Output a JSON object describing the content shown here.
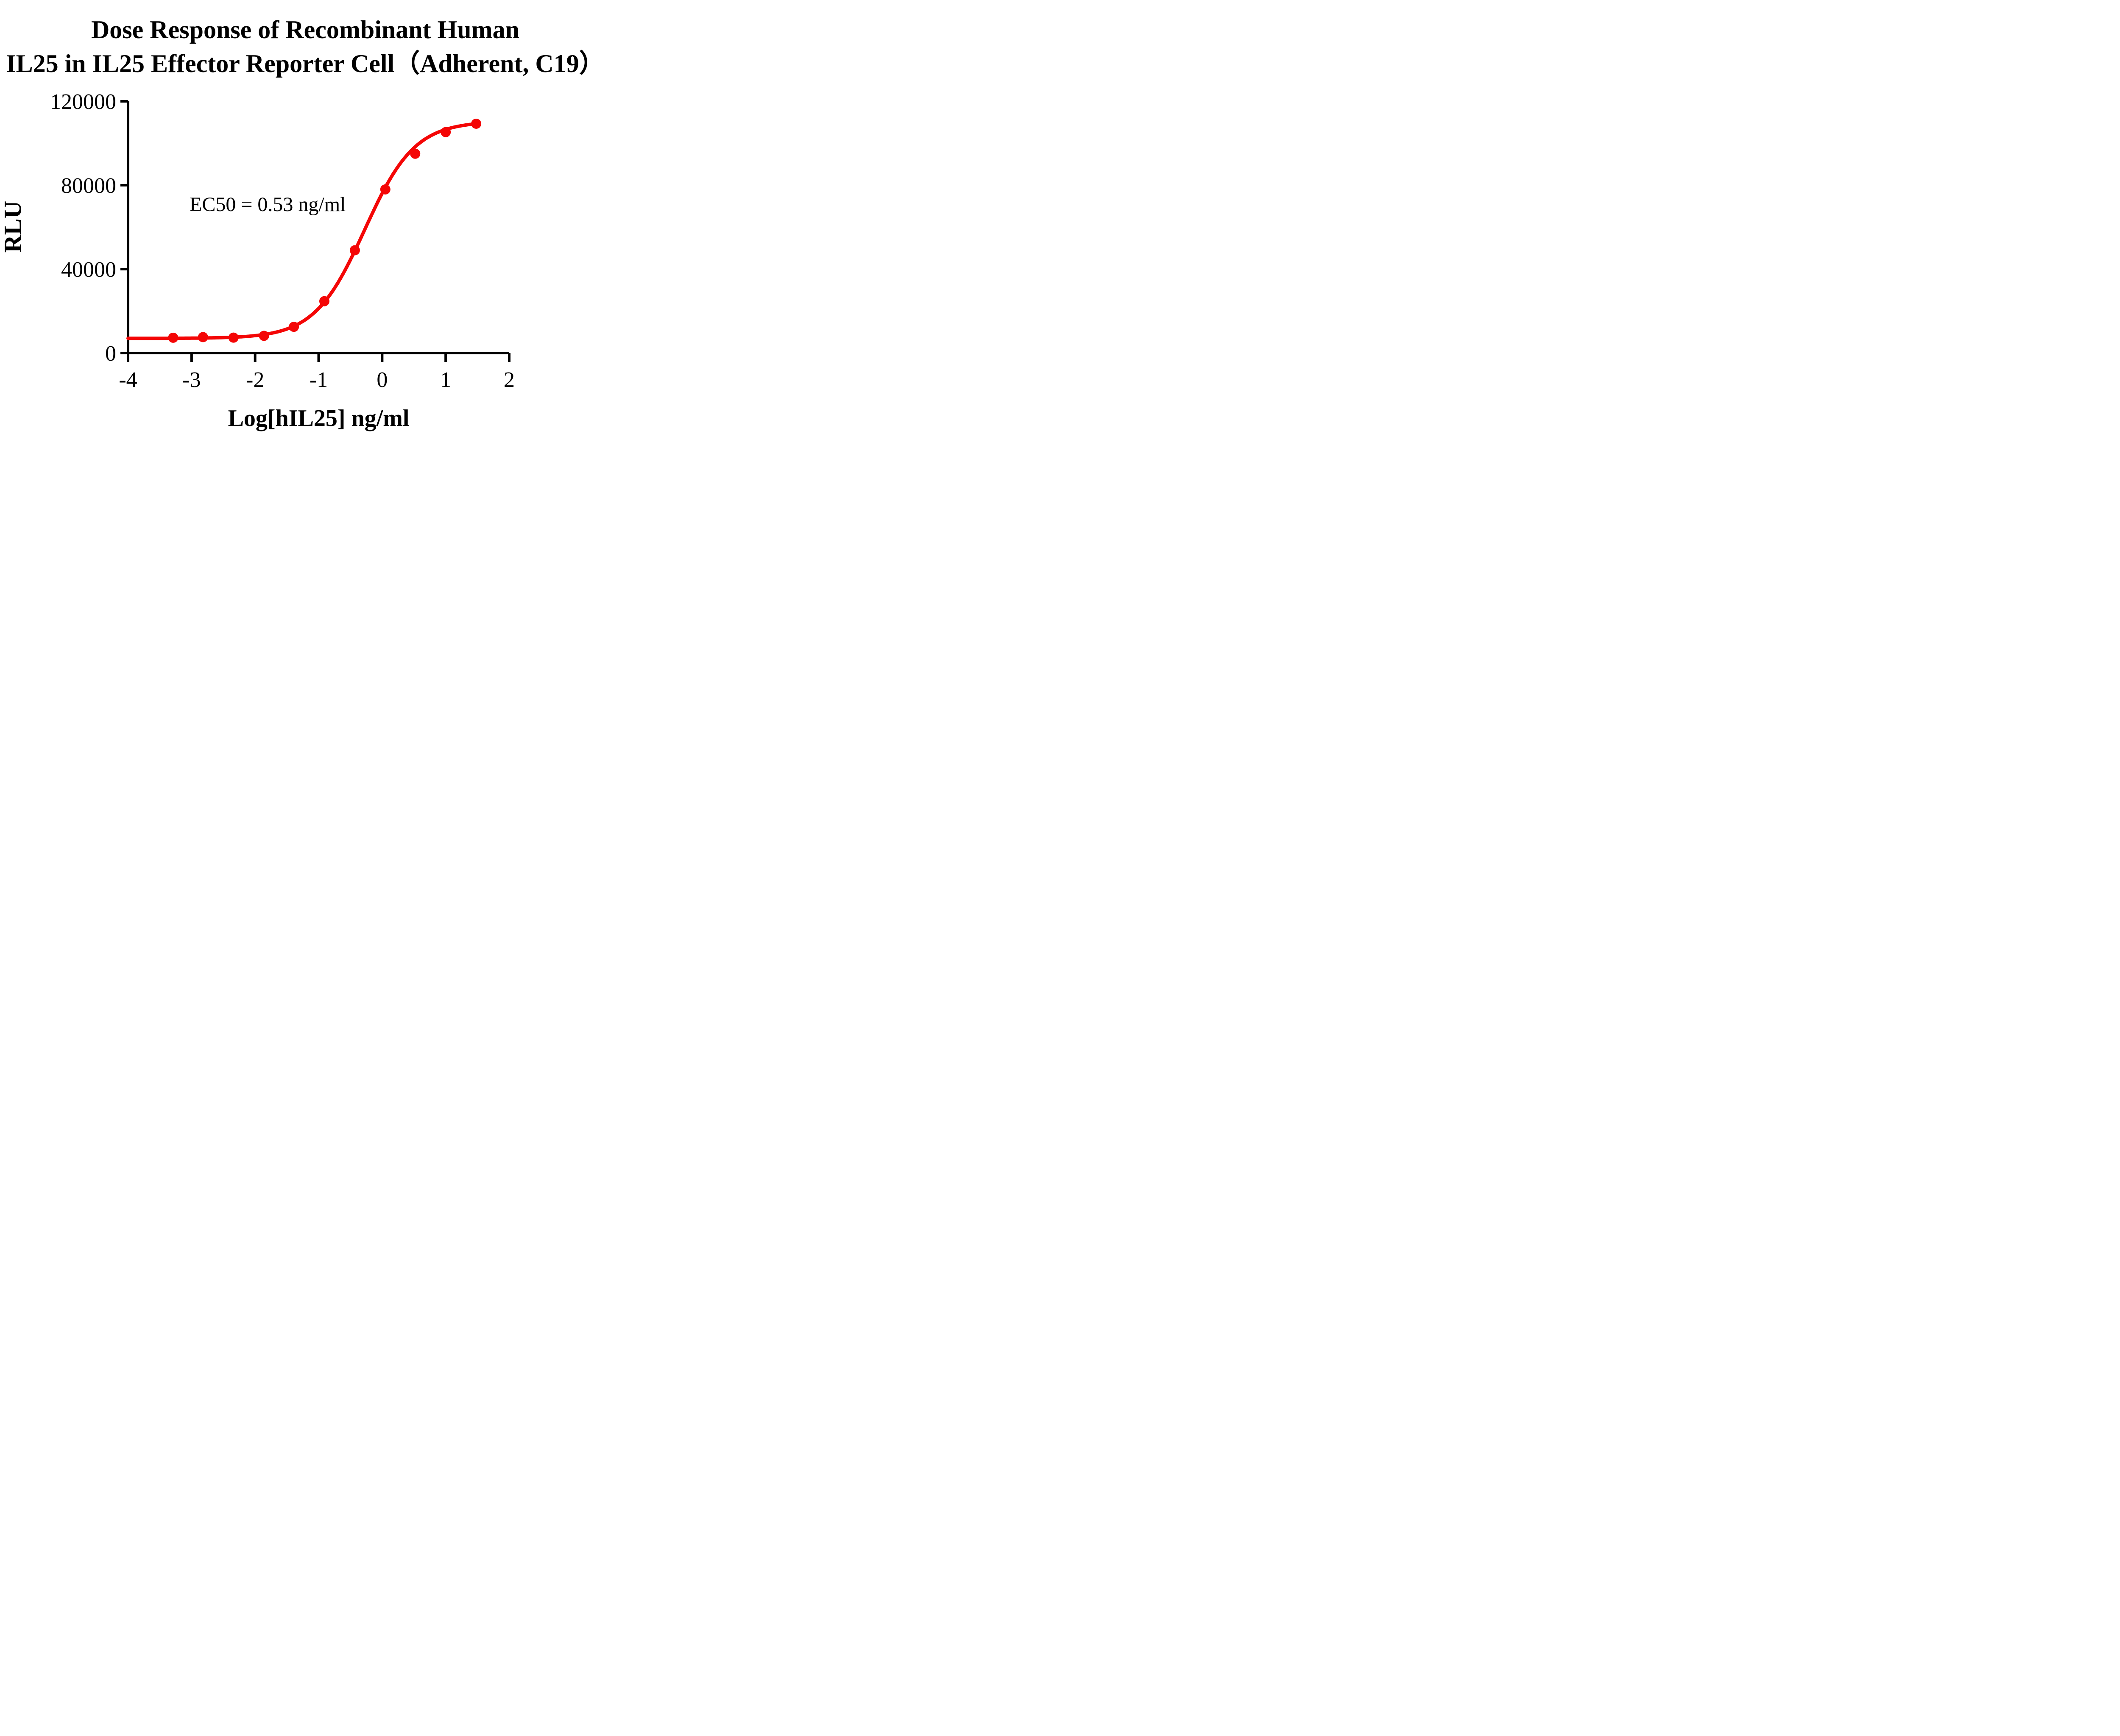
{
  "chart_data": {
    "type": "line",
    "title_line1": "Dose Response of Recombinant Human",
    "title_line2": "IL25 in IL25 Effector Reporter Cell（Adherent, C19）",
    "xlabel": "Log[hIL25] ng/ml",
    "ylabel": "RLU",
    "annotation": "EC50 = 0.53 ng/ml",
    "ec50_ng_ml": 0.53,
    "xlim": [
      -4,
      2
    ],
    "ylim": [
      0,
      120000
    ],
    "x_ticks": [
      -4,
      -3,
      -2,
      -1,
      0,
      1,
      2
    ],
    "y_ticks": [
      0,
      40000,
      80000,
      120000
    ],
    "grid": false,
    "legend": "none",
    "axis_color": "#000000",
    "series": [
      {
        "name": "Recombinant Human IL25",
        "color": "#F40606",
        "marker": "circle",
        "x": [
          -3.29,
          -2.82,
          -2.34,
          -1.86,
          -1.39,
          -0.91,
          -0.43,
          0.05,
          0.52,
          1.0,
          1.48
        ],
        "y": [
          7300,
          7600,
          7350,
          8200,
          12500,
          24700,
          49000,
          78000,
          95000,
          105300,
          109300
        ]
      }
    ],
    "curve_fit": {
      "model": "4PL",
      "bottom": 7000,
      "top": 110500,
      "log_ec50": -0.2757,
      "hill": 1.1
    }
  }
}
